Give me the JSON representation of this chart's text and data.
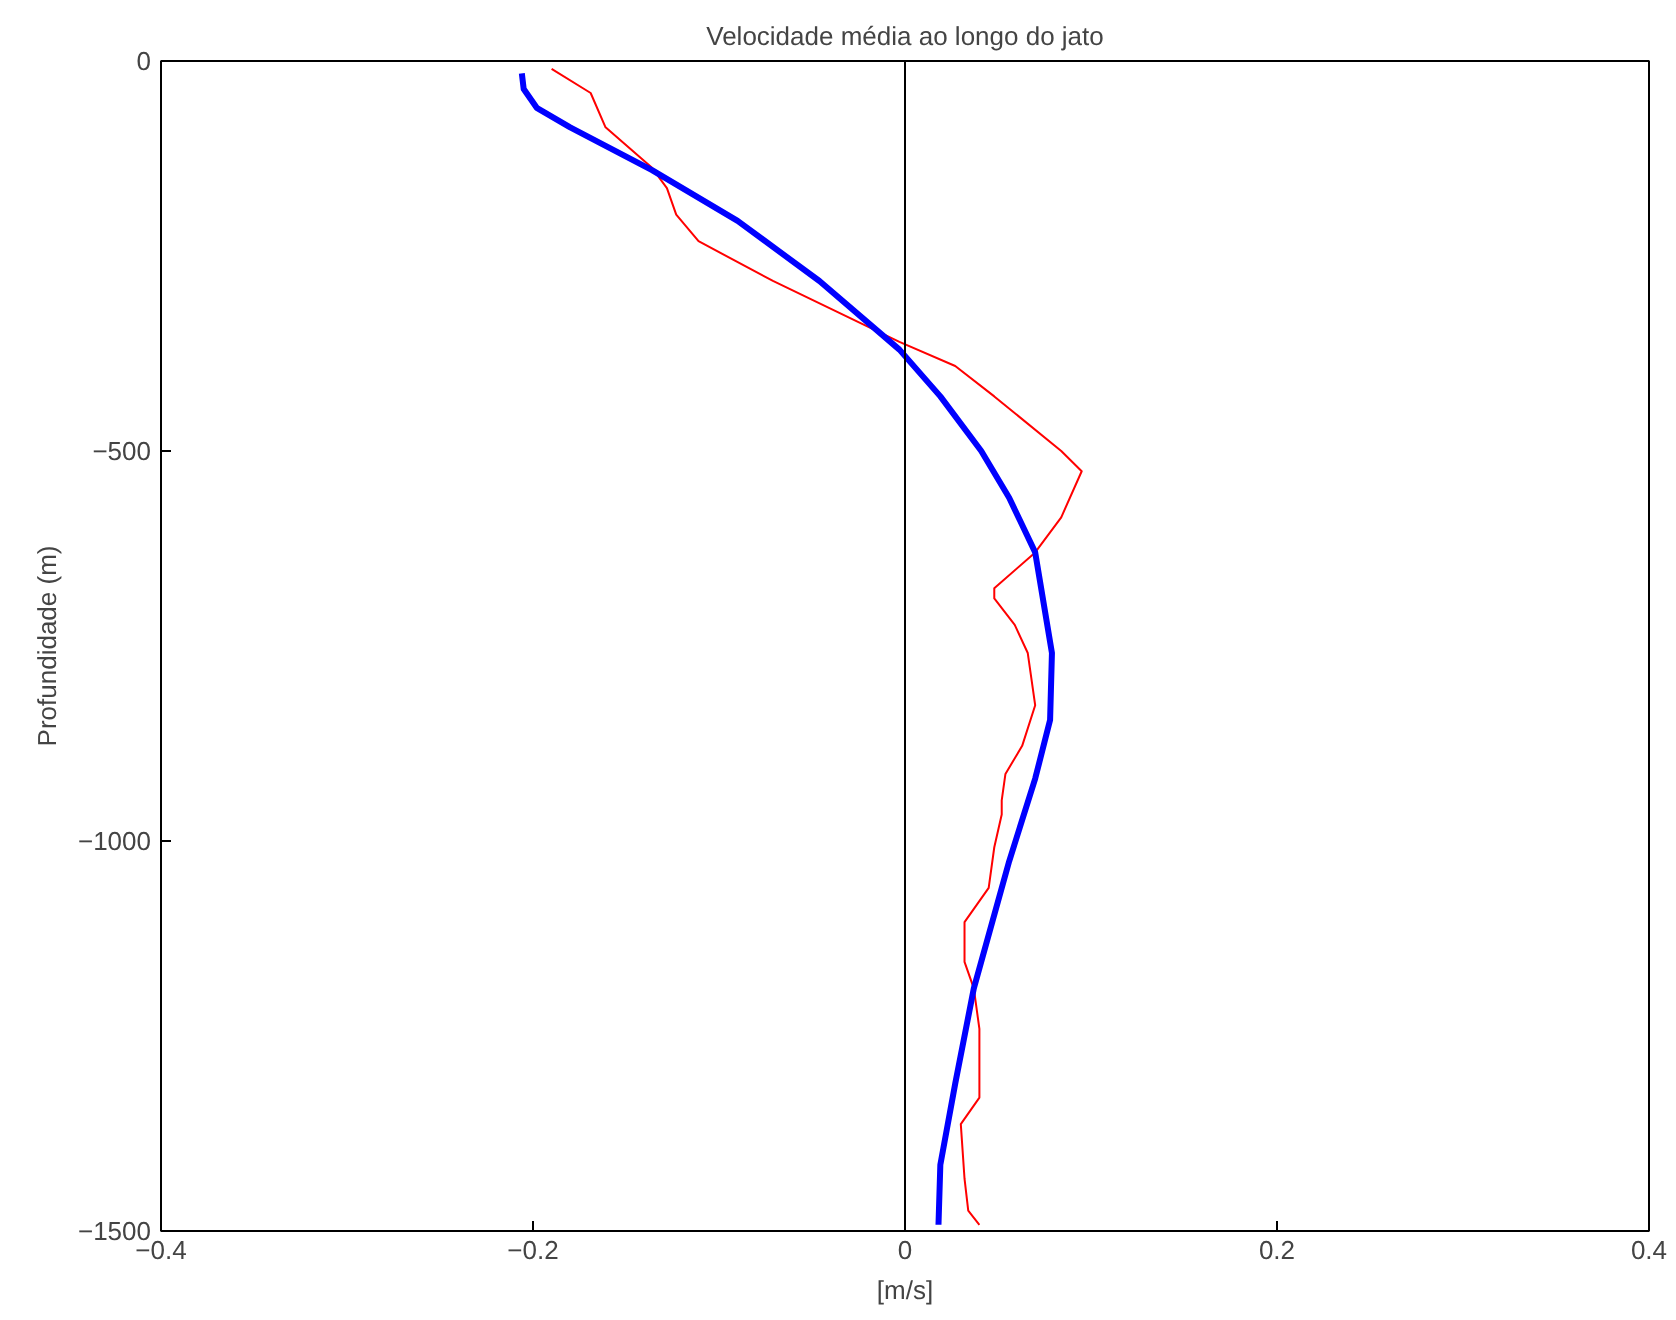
{
  "chart_data": {
    "type": "line",
    "title": "Velocidade média ao longo do jato",
    "xlabel": "[m/s]",
    "ylabel": "Profundidade (m)",
    "xlim": [
      -0.4,
      0.4
    ],
    "ylim": [
      -1500,
      0
    ],
    "xticks": [
      -0.4,
      -0.2,
      0,
      0.2,
      0.4
    ],
    "yticks": [
      -1500,
      -1000,
      -500,
      0
    ],
    "grid": false,
    "marker": "none",
    "line_style": "solid",
    "ref_lines": [
      {
        "axis": "x",
        "value": 0,
        "color": "#000000"
      }
    ],
    "series": [
      {
        "color": "#ff0000",
        "x": [
          -0.19,
          -0.169,
          -0.161,
          -0.136,
          -0.128,
          -0.123,
          -0.111,
          -0.071,
          -0.003,
          0.027,
          0.048,
          0.084,
          0.095,
          0.084,
          0.07,
          0.048,
          0.048,
          0.059,
          0.066,
          0.07,
          0.063,
          0.054,
          0.052,
          0.052,
          0.048,
          0.045,
          0.032,
          0.032,
          0.037,
          0.04,
          0.04,
          0.03,
          0.032,
          0.034,
          0.04
        ],
        "values": [
          -10,
          -41,
          -85,
          -137,
          -163,
          -197,
          -231,
          -282,
          -360,
          -391,
          -430,
          -500,
          -526,
          -585,
          -630,
          -676,
          -689,
          -723,
          -759,
          -826,
          -878,
          -914,
          -948,
          -966,
          -1008,
          -1060,
          -1104,
          -1155,
          -1189,
          -1241,
          -1329,
          -1363,
          -1433,
          -1474,
          -1492
        ]
      },
      {
        "color": "#0000ff",
        "x": [
          -0.206,
          -0.205,
          -0.198,
          -0.18,
          -0.136,
          -0.09,
          -0.046,
          -0.003,
          0.019,
          0.041,
          0.056,
          0.07,
          0.079,
          0.078,
          0.07,
          0.056,
          0.037,
          0.027,
          0.019,
          0.018
        ],
        "values": [
          -16,
          -36,
          -60,
          -85,
          -140,
          -205,
          -282,
          -370,
          -430,
          -500,
          -560,
          -630,
          -759,
          -845,
          -920,
          -1026,
          -1189,
          -1311,
          -1415,
          -1492
        ]
      }
    ]
  }
}
